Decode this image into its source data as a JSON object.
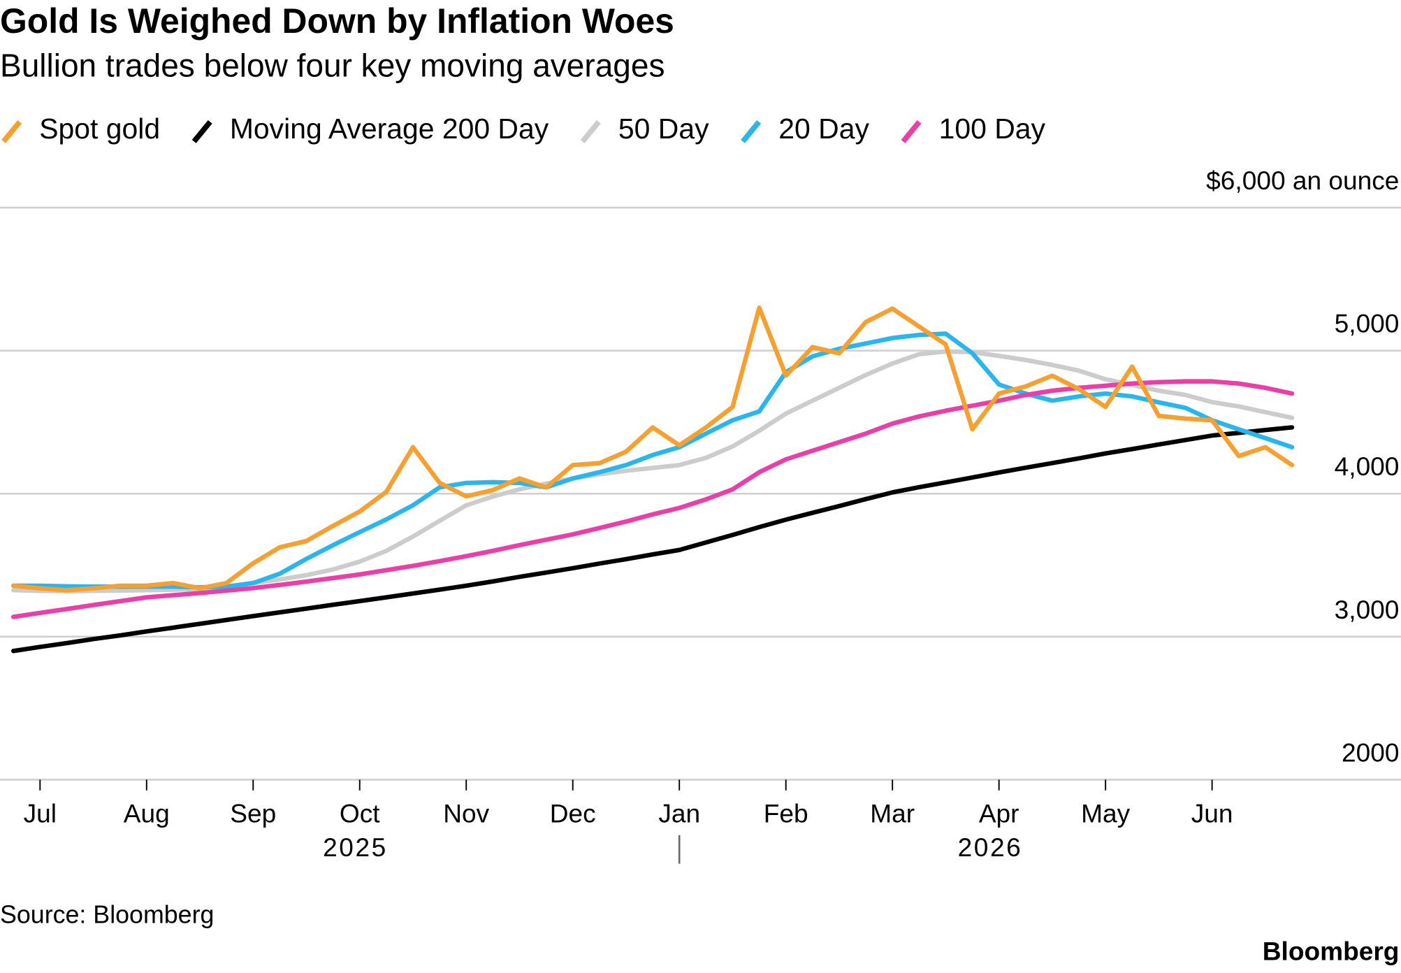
{
  "chart_data": {
    "type": "line",
    "title": "Gold Is Weighed Down by Inflation Woes",
    "subtitle": "Bullion trades below four key moving averages",
    "source": "Source: Bloomberg",
    "brand": "Bloomberg",
    "categories": [
      null,
      "Jul",
      null,
      null,
      null,
      "Aug",
      null,
      null,
      null,
      "Sep",
      null,
      null,
      null,
      "Oct",
      null,
      null,
      null,
      "Nov",
      null,
      null,
      null,
      "Dec",
      null,
      null,
      null,
      "Jan",
      null,
      null,
      null,
      "Feb",
      null,
      null,
      null,
      "Mar",
      null,
      null,
      null,
      "Apr",
      null,
      null,
      null,
      "May",
      null,
      null,
      null,
      "Jun",
      null,
      null,
      null
    ],
    "years": [
      "2025",
      "2026"
    ],
    "ylim": [
      2000,
      6000
    ],
    "yticks": [
      2000,
      {
        "value": 3000,
        "label": "3,000"
      },
      {
        "value": 4000,
        "label": "4,000"
      },
      {
        "value": 5000,
        "label": "5,000"
      },
      {
        "value": 6000,
        "label": "$6,000 an ounce"
      }
    ],
    "grid": true,
    "series": [
      {
        "name": "Spot gold",
        "color": "#f5a031",
        "values": [
          3356,
          3338,
          3325,
          3338,
          3356,
          3356,
          3375,
          3338,
          3375,
          3513,
          3625,
          3669,
          3775,
          3875,
          4013,
          4325,
          4075,
          3981,
          4025,
          4106,
          4044,
          4200,
          4213,
          4294,
          4463,
          4338,
          4463,
          4606,
          5300,
          4825,
          5025,
          4981,
          5200,
          5294,
          5169,
          5044,
          4450,
          4700,
          4750,
          4825,
          4731,
          4606,
          4888,
          4544,
          4525,
          4513,
          4263,
          4325,
          4200
        ]
      },
      {
        "name": "Moving Average 200 Day",
        "color": "#000000",
        "values": [
          2900,
          2928,
          2955,
          2983,
          3009,
          3037,
          3063,
          3090,
          3117,
          3144,
          3170,
          3196,
          3223,
          3249,
          3275,
          3302,
          3329,
          3356,
          3386,
          3418,
          3448,
          3479,
          3511,
          3542,
          3575,
          3606,
          3659,
          3711,
          3766,
          3818,
          3866,
          3913,
          3962,
          4009,
          4045,
          4079,
          4113,
          4148,
          4181,
          4214,
          4247,
          4281,
          4312,
          4344,
          4375,
          4406,
          4425,
          4445,
          4463
        ]
      },
      {
        "name": "50 Day",
        "color": "#cccccc",
        "values": [
          3325,
          3320,
          3318,
          3320,
          3322,
          3325,
          3328,
          3332,
          3340,
          3375,
          3400,
          3430,
          3470,
          3525,
          3600,
          3700,
          3810,
          3919,
          3980,
          4030,
          4070,
          4106,
          4135,
          4160,
          4180,
          4200,
          4250,
          4330,
          4440,
          4560,
          4650,
          4740,
          4830,
          4910,
          4975,
          4994,
          4990,
          4963,
          4935,
          4900,
          4860,
          4800,
          4760,
          4720,
          4690,
          4640,
          4610,
          4570,
          4530
        ]
      },
      {
        "name": "20 Day",
        "color": "#2ab6ec",
        "values": [
          3356,
          3356,
          3352,
          3350,
          3350,
          3350,
          3350,
          3345,
          3350,
          3375,
          3440,
          3544,
          3640,
          3731,
          3820,
          3919,
          4044,
          4075,
          4080,
          4075,
          4044,
          4106,
          4150,
          4200,
          4270,
          4325,
          4420,
          4513,
          4575,
          4850,
          4960,
          5013,
          5050,
          5088,
          5110,
          5119,
          4981,
          4763,
          4700,
          4650,
          4680,
          4700,
          4680,
          4638,
          4600,
          4513,
          4450,
          4388,
          4325
        ]
      },
      {
        "name": "100 Day",
        "color": "#ea3fa8",
        "values": [
          3138,
          3166,
          3193,
          3221,
          3248,
          3275,
          3290,
          3305,
          3322,
          3340,
          3362,
          3385,
          3410,
          3435,
          3465,
          3495,
          3528,
          3563,
          3600,
          3640,
          3678,
          3715,
          3760,
          3805,
          3855,
          3900,
          3960,
          4030,
          4150,
          4240,
          4300,
          4360,
          4420,
          4490,
          4540,
          4580,
          4615,
          4650,
          4690,
          4720,
          4740,
          4755,
          4770,
          4780,
          4785,
          4785,
          4770,
          4740,
          4700
        ]
      }
    ]
  }
}
